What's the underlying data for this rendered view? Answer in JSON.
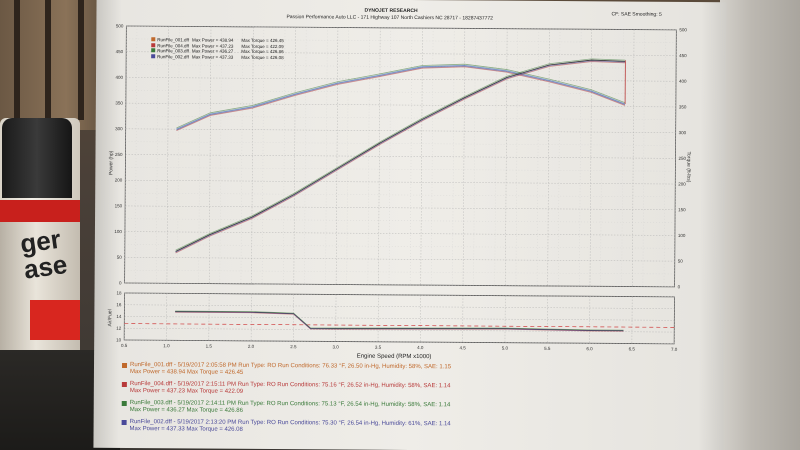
{
  "header": {
    "company": "DYNOJET RESEARCH",
    "shop": "Passion Performance Auto LLC - 171 Highway 107 North Cashiers NC 28717 - 18287437772",
    "correction": "CF: SAE  Smoothing: 5"
  },
  "chart_data": [
    {
      "type": "line",
      "title": "",
      "xlabel": "Engine Speed (RPM x1000)",
      "ylabel": "Power (hp)",
      "y2label": "Torque (ft-lbs)",
      "xlim": [
        0.5,
        7.0
      ],
      "ylim": [
        0,
        500
      ],
      "y2lim": [
        0,
        500
      ],
      "x_ticks": [
        "0.5",
        "1.0",
        "1.5",
        "2.0",
        "2.5",
        "3.0",
        "3.5",
        "4.0",
        "4.5",
        "5.0",
        "5.5",
        "6.0",
        "6.5",
        "7.0"
      ],
      "y_ticks": [
        "0",
        "50",
        "100",
        "150",
        "200",
        "250",
        "300",
        "350",
        "400",
        "450",
        "500"
      ],
      "y2_ticks": [
        "0",
        "50",
        "100",
        "150",
        "200",
        "250",
        "300",
        "350",
        "400",
        "450",
        "500"
      ],
      "legend": [
        {
          "file": "RunFile_001.dff",
          "power": "Max Power = 438.94",
          "torque": "Max Torque = 426.45",
          "color": "#c0692c"
        },
        {
          "file": "RunFile_004.dff",
          "power": "Max Power = 437.23",
          "torque": "Max Torque = 422.09",
          "color": "#b83a3a"
        },
        {
          "file": "RunFile_003.dff",
          "power": "Max Power = 436.27",
          "torque": "Max Torque = 426.86",
          "color": "#3a7a3a"
        },
        {
          "file": "RunFile_002.dff",
          "power": "Max Power = 437.33",
          "torque": "Max Torque = 426.08",
          "color": "#4a4a9a"
        }
      ],
      "series": [
        {
          "name": "Torque",
          "x": [
            1.1,
            1.5,
            2.0,
            2.5,
            3.0,
            3.5,
            4.0,
            4.5,
            5.0,
            5.5,
            6.0,
            6.4
          ],
          "values": [
            300,
            330,
            345,
            370,
            392,
            408,
            425,
            428,
            418,
            400,
            380,
            355
          ],
          "color": "#6f93c8"
        },
        {
          "name": "Power",
          "x": [
            1.1,
            1.5,
            2.0,
            2.5,
            3.0,
            3.5,
            4.0,
            4.5,
            5.0,
            5.5,
            6.0,
            6.4
          ],
          "values": [
            62,
            95,
            130,
            175,
            225,
            275,
            322,
            365,
            405,
            430,
            440,
            438
          ],
          "color": "#2f2f2f"
        }
      ]
    },
    {
      "type": "line",
      "title": "",
      "xlabel": "Engine Speed (RPM x1000)",
      "ylabel": "Air/Fuel",
      "xlim": [
        0.5,
        7.0
      ],
      "ylim": [
        10,
        18
      ],
      "y_ticks": [
        "10",
        "12",
        "14",
        "16",
        "18"
      ],
      "reference_line": 12.8,
      "series": [
        {
          "name": "Air/Fuel",
          "x": [
            1.1,
            2.0,
            2.5,
            2.7,
            3.0,
            4.0,
            5.0,
            6.0,
            6.4
          ],
          "values": [
            14.9,
            14.9,
            14.7,
            12.2,
            12.2,
            12.3,
            12.4,
            12.2,
            12.2
          ],
          "color": "#2f2f2f"
        }
      ]
    }
  ],
  "runs": [
    {
      "line1": "RunFile_001.dff - 5/19/2017 2:05:58 PM  Run Type: RO  Run Conditions: 76.33 °F, 26.50 in-Hg,  Humidity:  58%, SAE: 1.15",
      "line2": "Max Power = 438.94  Max Torque = 426.45",
      "color": "#c0692c"
    },
    {
      "line1": "RunFile_004.dff - 5/19/2017 2:15:11 PM  Run Type: RO  Run Conditions: 75.16 °F, 26.52 in-Hg,  Humidity:  58%, SAE: 1.14",
      "line2": "Max Power = 437.23  Max Torque = 422.09",
      "color": "#b83a3a"
    },
    {
      "line1": "RunFile_003.dff - 5/19/2017 2:14:11 PM  Run Type: RO  Run Conditions: 75.13 °F, 26.54 in-Hg,  Humidity:  58%, SAE: 1.14",
      "line2": "Max Power = 436.27  Max Torque = 426.86",
      "color": "#3a7a3a"
    },
    {
      "line1": "RunFile_002.dff - 5/19/2017 2:13:20 PM  Run Type: RO  Run Conditions: 75.30 °F, 26.54 in-Hg,  Humidity:  61%, SAE: 1.14",
      "line2": "Max Power = 437.33  Max Torque = 426.08",
      "color": "#4a4a9a"
    }
  ],
  "can": {
    "text_line1": "ger",
    "text_line2": "ase"
  }
}
